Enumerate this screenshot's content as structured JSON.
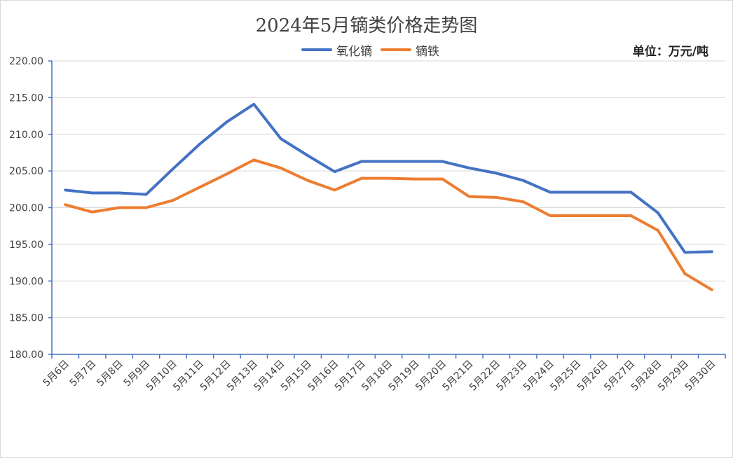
{
  "chart_data": {
    "type": "line",
    "title": "2024年5月镝类价格走势图",
    "unit_label": "单位：万元/吨",
    "xlabel": "",
    "ylabel": "",
    "ylim": [
      180,
      220
    ],
    "yticks": [
      "220.00",
      "215.00",
      "210.00",
      "205.00",
      "200.00",
      "195.00",
      "190.00",
      "185.00",
      "180.00"
    ],
    "grid": true,
    "legend_position": "top-center",
    "categories": [
      "5月6日",
      "5月7日",
      "5月8日",
      "5月9日",
      "5月10日",
      "5月11日",
      "5月12日",
      "5月13日",
      "5月14日",
      "5月15日",
      "5月16日",
      "5月17日",
      "5月18日",
      "5月19日",
      "5月20日",
      "5月21日",
      "5月22日",
      "5月23日",
      "5月24日",
      "5月25日",
      "5月26日",
      "5月27日",
      "5月28日",
      "5月29日",
      "5月30日"
    ],
    "series": [
      {
        "name": "氧化镝",
        "color": "#4472c4",
        "values": [
          202.4,
          202.0,
          202.0,
          201.8,
          205.3,
          208.7,
          211.7,
          214.1,
          209.4,
          207.1,
          204.9,
          206.3,
          206.3,
          206.3,
          206.3,
          205.4,
          204.7,
          203.7,
          202.1,
          202.1,
          202.1,
          202.1,
          199.3,
          193.9,
          194.0
        ]
      },
      {
        "name": "镝铁",
        "color": "#ed7d31",
        "values": [
          200.4,
          199.4,
          200.0,
          200.0,
          201.0,
          202.8,
          204.6,
          206.5,
          205.4,
          203.7,
          202.4,
          204.0,
          204.0,
          203.9,
          203.9,
          201.5,
          201.4,
          200.8,
          198.9,
          198.9,
          198.9,
          198.9,
          196.9,
          191.0,
          188.8
        ]
      }
    ]
  }
}
